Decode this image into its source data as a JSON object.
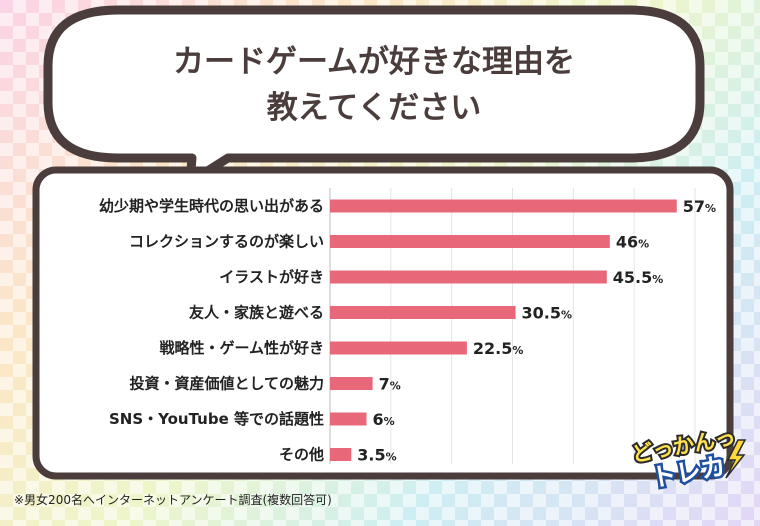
{
  "heading": {
    "line1": "カードゲームが好きな理由を",
    "line2": "教えてください"
  },
  "chart_data": {
    "type": "bar",
    "orientation": "horizontal",
    "categories": [
      "幼少期や学生時代の思い出がある",
      "コレクションするのが楽しい",
      "イラストが好き",
      "友人・家族と遊べる",
      "戦略性・ゲーム性が好き",
      "投資・資産価値としての魅力",
      "SNS・YouTube 等での話題性",
      "その他"
    ],
    "values": [
      57,
      46,
      45.5,
      30.5,
      22.5,
      7,
      6,
      3.5
    ],
    "labels": [
      "57",
      "46",
      "45.5",
      "30.5",
      "22.5",
      "7",
      "6",
      "3.5"
    ],
    "unit": "%",
    "xlim": [
      0,
      60
    ],
    "bar_color": "#e8687a",
    "grid": true
  },
  "footnote": "※男女200名へインターネットアンケート調査(複数回答可)",
  "logo": {
    "line1": "どっかんっ",
    "line2": "トレカ"
  }
}
